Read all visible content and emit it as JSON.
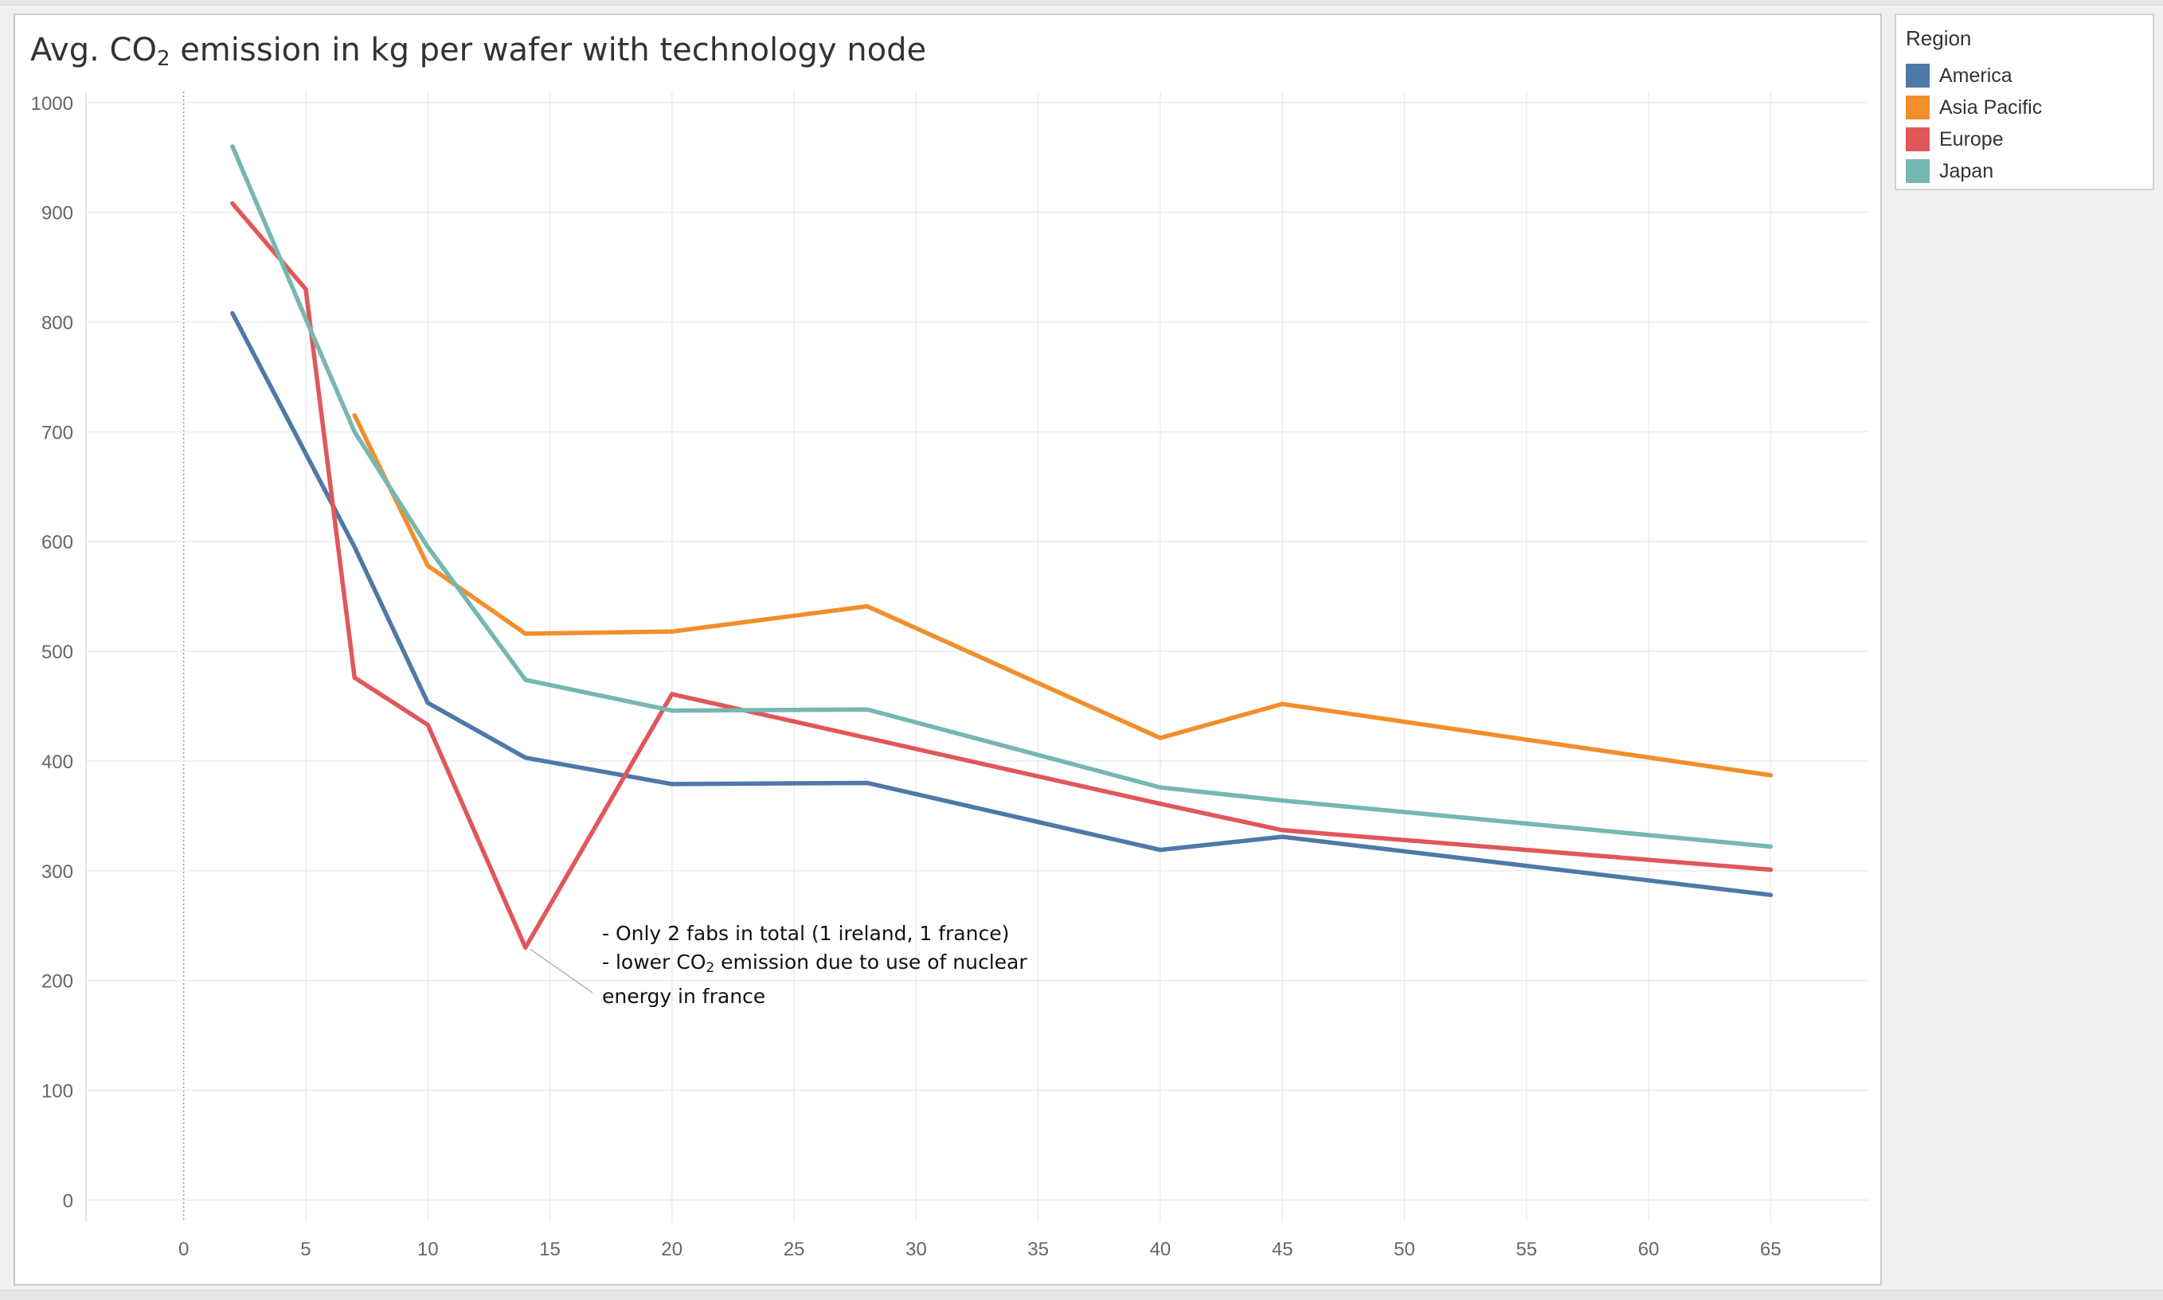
{
  "chart_data": {
    "type": "line",
    "title_prefix": "Avg. CO",
    "title_sub": "2",
    "title_suffix": " emission in kg per wafer with technology node",
    "xlim": [
      -4,
      69
    ],
    "ylim": [
      -20,
      1010
    ],
    "x_ticks": [
      0,
      5,
      10,
      15,
      20,
      25,
      30,
      35,
      40,
      45,
      50,
      55,
      60,
      65
    ],
    "y_ticks": [
      0,
      100,
      200,
      300,
      400,
      500,
      600,
      700,
      800,
      900,
      1000
    ],
    "grid": true,
    "legend_title": "Region",
    "legend_position": "right",
    "series": [
      {
        "name": "America",
        "color": "#4e79a7",
        "x": [
          2,
          7,
          10,
          14,
          20,
          28,
          40,
          45,
          65
        ],
        "y": [
          808,
          595,
          453,
          403,
          379,
          380,
          319,
          331,
          278
        ]
      },
      {
        "name": "Asia Pacific",
        "color": "#f28e2b",
        "x": [
          7,
          10,
          14,
          20,
          28,
          40,
          45,
          65
        ],
        "y": [
          715,
          578,
          516,
          518,
          541,
          421,
          452,
          387
        ]
      },
      {
        "name": "Europe",
        "color": "#e15759",
        "x": [
          2,
          5,
          7,
          10,
          14,
          20,
          28,
          40,
          45,
          65
        ],
        "y": [
          908,
          830,
          476,
          433,
          230,
          461,
          421,
          361,
          337,
          301
        ]
      },
      {
        "name": "Japan",
        "color": "#76b7b2",
        "x": [
          2,
          5,
          7,
          10,
          14,
          20,
          28,
          40,
          45,
          65
        ],
        "y": [
          960,
          803,
          700,
          595,
          474,
          446,
          447,
          376,
          364,
          322
        ]
      }
    ],
    "annotation": {
      "line1": "- Only 2 fabs in total  (1 ireland, 1 france)",
      "line2_prefix": "- lower CO",
      "line2_sub": "2",
      "line2_suffix": " emission due to use of nuclear",
      "line3": "energy in france",
      "target_x": 14,
      "target_y": 230
    }
  }
}
